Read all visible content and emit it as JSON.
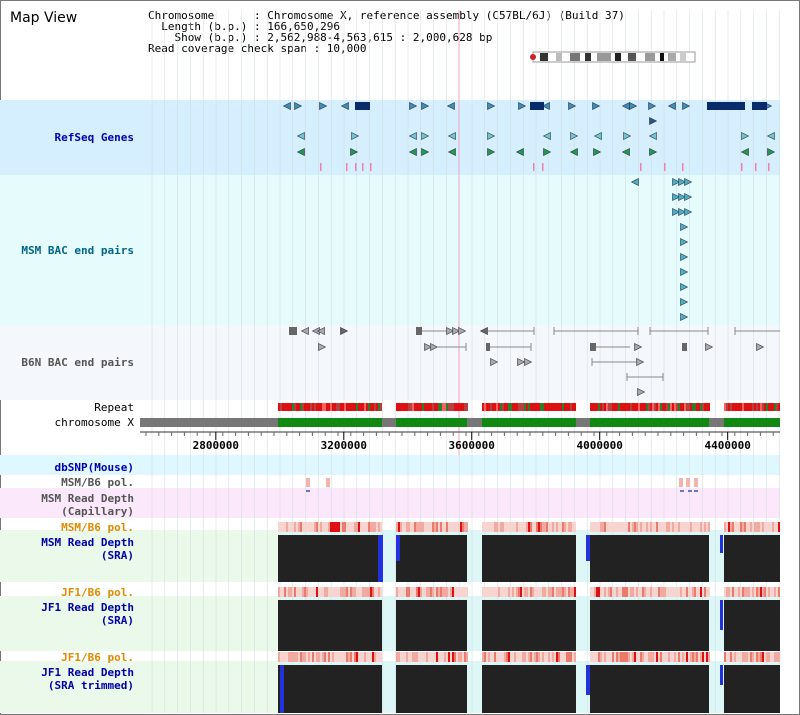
{
  "panel_title": "Map View",
  "info": {
    "chromosome": "Chromosome      : Chromosome X, reference assembly (C57BL/6J) (Build 37)",
    "length": "  Length (b.p.) : 166,650,296",
    "show": "    Show (b.p.) : 2,562,988-4,563,615 : 2,000,628 bp",
    "span": "Read coverage check span : 10,000"
  },
  "view": {
    "start": 2562988,
    "end": 4563615
  },
  "tracks": {
    "refseq": "RefSeq Genes",
    "msm_bac": "MSM BAC end pairs",
    "b6n_bac": "B6N BAC end pairs",
    "repeat": "Repeat",
    "chromosome": "chromosome X",
    "dbsnp": "dbSNP(Mouse)",
    "msm_b6_pol_1": "MSM/B6 pol.",
    "msm_depth_cap": "MSM Read Depth\n(Capillary)",
    "msm_b6_pol_2": "MSM/B6 pol.",
    "msm_depth_sra": "MSM Read Depth\n(SRA)",
    "jf1_b6_pol_1": "JF1/B6 pol.",
    "jf1_depth_sra": "JF1 Read Depth\n(SRA)",
    "jf1_b6_pol_2": "JF1/B6 pol.",
    "jf1_depth_trim": "JF1 Read Depth\n(SRA trimmed)"
  },
  "ruler_ticks": [
    2800000,
    3200000,
    3600000,
    4000000,
    4400000
  ],
  "colors": {
    "refseq_bg": "#d6efff",
    "bac_bg": "#e6fbfb",
    "b6n_bg": "#f4f7fb",
    "repeat": "#cc2222",
    "chrom_green": "#118811",
    "chrom_gray": "#777777",
    "depth": "#222222",
    "depth_edge": "#2233dd",
    "pol": "#f5b3ac"
  }
}
